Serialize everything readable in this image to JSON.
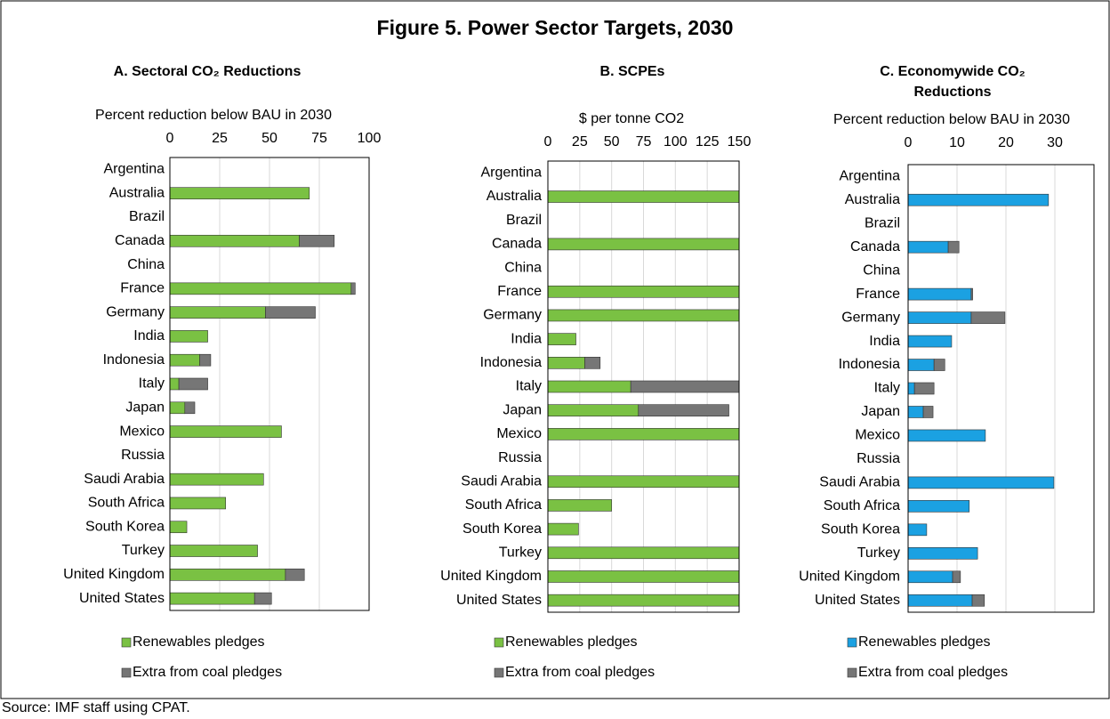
{
  "title": "Figure 5. Power Sector Targets, 2030",
  "source": "Source: IMF staff using CPAT.",
  "chart_data": [
    {
      "type": "bar",
      "orientation": "horizontal",
      "stacked": true,
      "title": "A. Sectoral CO₂ Reductions",
      "xlabel": "Percent reduction below BAU in 2030",
      "categories": [
        "Argentina",
        "Australia",
        "Brazil",
        "Canada",
        "China",
        "France",
        "Germany",
        "India",
        "Indonesia",
        "Italy",
        "Japan",
        "Mexico",
        "Russia",
        "Saudi Arabia",
        "South Africa",
        "South Korea",
        "Turkey",
        "United Kingdom",
        "United States"
      ],
      "series": [
        {
          "name": "Renewables pledges",
          "color": "#7ac143",
          "values": [
            null,
            70,
            null,
            65,
            null,
            91,
            48,
            19,
            15,
            4.5,
            7.5,
            56,
            null,
            47,
            28,
            8.5,
            44,
            58,
            42.5
          ]
        },
        {
          "name": "Extra from coal pledges",
          "color": "#767676",
          "values": [
            null,
            null,
            null,
            17.5,
            null,
            2,
            25,
            null,
            5.5,
            14.5,
            5,
            null,
            null,
            null,
            null,
            null,
            null,
            9.5,
            8.5
          ]
        }
      ],
      "xlim": [
        0,
        100
      ],
      "xticks": [
        0,
        25,
        50,
        75,
        100
      ],
      "grid": true
    },
    {
      "type": "bar",
      "orientation": "horizontal",
      "stacked": true,
      "title": "B. SCPEs",
      "xlabel": "$ per tonne CO2",
      "categories": [
        "Argentina",
        "Australia",
        "Brazil",
        "Canada",
        "China",
        "France",
        "Germany",
        "India",
        "Indonesia",
        "Italy",
        "Japan",
        "Mexico",
        "Russia",
        "Saudi Arabia",
        "South Africa",
        "South Korea",
        "Turkey",
        "United Kingdom",
        "United States"
      ],
      "series": [
        {
          "name": "Renewables pledges",
          "color": "#7ac143",
          "values": [
            null,
            150,
            null,
            150,
            null,
            150,
            150,
            22,
            29,
            65,
            71,
            150,
            null,
            150,
            50,
            24,
            150,
            150,
            150
          ]
        },
        {
          "name": "Extra from coal pledges",
          "color": "#767676",
          "values": [
            null,
            null,
            null,
            null,
            null,
            null,
            null,
            null,
            12,
            85,
            71,
            null,
            null,
            null,
            null,
            null,
            null,
            null,
            null
          ]
        }
      ],
      "xlim": [
        0,
        150
      ],
      "xticks": [
        0,
        25,
        50,
        75,
        100,
        125,
        150
      ],
      "grid": true
    },
    {
      "type": "bar",
      "orientation": "horizontal",
      "stacked": true,
      "title": "C. Economywide CO₂ Reductions",
      "xlabel": "Percent reduction below BAU in 2030",
      "categories": [
        "Argentina",
        "Australia",
        "Brazil",
        "Canada",
        "China",
        "France",
        "Germany",
        "India",
        "Indonesia",
        "Italy",
        "Japan",
        "Mexico",
        "Russia",
        "Saudi Arabia",
        "South Africa",
        "South Korea",
        "Turkey",
        "United Kingdom",
        "United States"
      ],
      "series": [
        {
          "name": "Renewables pledges",
          "color": "#1ba1e2",
          "values": [
            null,
            28.7,
            null,
            8.2,
            null,
            12.9,
            12.9,
            8.9,
            5.3,
            1.3,
            3.1,
            15.8,
            null,
            29.8,
            12.5,
            3.8,
            14.2,
            9.1,
            13.1
          ]
        },
        {
          "name": "Extra from coal pledges",
          "color": "#767676",
          "values": [
            null,
            null,
            null,
            2.2,
            null,
            0.3,
            6.9,
            null,
            2.2,
            4,
            2,
            null,
            null,
            null,
            null,
            null,
            null,
            1.6,
            2.5
          ]
        }
      ],
      "xlim": [
        0,
        38
      ],
      "xticks": [
        0,
        10,
        20,
        30
      ],
      "grid": true
    }
  ]
}
